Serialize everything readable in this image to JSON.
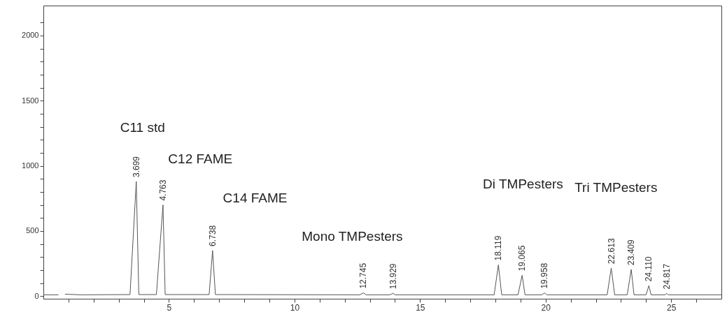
{
  "chart_data": {
    "type": "line",
    "x": [
      0,
      0.6,
      0.66,
      0.8,
      0.86,
      1.5,
      3.45,
      3.699,
      3.8,
      4.5,
      4.763,
      4.85,
      6.6,
      6.738,
      6.85,
      12.6,
      12.745,
      12.85,
      13.8,
      13.929,
      14.0,
      17.95,
      18.119,
      18.25,
      18.9,
      19.065,
      19.18,
      19.85,
      19.958,
      20.05,
      22.45,
      22.613,
      22.75,
      23.25,
      23.409,
      23.52,
      24.0,
      24.11,
      24.2,
      24.75,
      24.817,
      24.9,
      27
    ],
    "series": [
      {
        "color": "#555555",
        "values": [
          10,
          10,
          null,
          null,
          15,
          10,
          12,
          880,
          12,
          12,
          700,
          12,
          12,
          350,
          12,
          10,
          25,
          10,
          10,
          22,
          10,
          10,
          240,
          10,
          10,
          160,
          10,
          10,
          25,
          10,
          10,
          215,
          10,
          10,
          205,
          10,
          10,
          80,
          10,
          10,
          20,
          10,
          10
        ]
      }
    ],
    "xlim": [
      0,
      27
    ],
    "xticks": [
      {
        "value": 1,
        "label": null
      },
      {
        "value": 2,
        "label": null
      },
      {
        "value": 3,
        "label": null
      },
      {
        "value": 4,
        "label": null
      },
      5,
      {
        "value": 6,
        "label": null
      },
      {
        "value": 7,
        "label": null
      },
      {
        "value": 8,
        "label": null
      },
      {
        "value": 9,
        "label": null
      },
      10,
      {
        "value": 11,
        "label": null
      },
      {
        "value": 12,
        "label": null
      },
      {
        "value": 13,
        "label": null
      },
      {
        "value": 14,
        "label": null
      },
      15,
      {
        "value": 16,
        "label": null
      },
      {
        "value": 17,
        "label": null
      },
      {
        "value": 18,
        "label": null
      },
      {
        "value": 19,
        "label": null
      },
      20,
      {
        "value": 21,
        "label": null
      },
      {
        "value": 22,
        "label": null
      },
      {
        "value": 23,
        "label": null
      },
      {
        "value": 24,
        "label": null
      },
      25,
      {
        "value": 26,
        "label": null
      }
    ],
    "ylim": [
      -20,
      2230
    ],
    "yticks": [
      0,
      {
        "value": 100,
        "label": null
      },
      {
        "value": 200,
        "label": null
      },
      {
        "value": 300,
        "label": null
      },
      {
        "value": 400,
        "label": null
      },
      500,
      {
        "value": 600,
        "label": null
      },
      {
        "value": 700,
        "label": null
      },
      {
        "value": 800,
        "label": null
      },
      {
        "value": 900,
        "label": null
      },
      1000,
      {
        "value": 1100,
        "label": null
      },
      {
        "value": 1200,
        "label": null
      },
      {
        "value": 1300,
        "label": null
      },
      {
        "value": 1400,
        "label": null
      },
      1500,
      {
        "value": 1600,
        "label": null
      },
      {
        "value": 1700,
        "label": null
      },
      {
        "value": 1800,
        "label": null
      },
      {
        "value": 1900,
        "label": null
      },
      2000,
      {
        "value": 2100,
        "label": null
      }
    ],
    "grid": false,
    "marker": "none",
    "line_style": "solid",
    "annotations": [
      {
        "text": "3.699",
        "x": 3.699,
        "y": 880
      },
      {
        "text": "4.763",
        "x": 4.763,
        "y": 700
      },
      {
        "text": "6.738",
        "x": 6.738,
        "y": 350
      },
      {
        "text": "12.745",
        "x": 12.745,
        "y": 25
      },
      {
        "text": "13.929",
        "x": 13.929,
        "y": 22
      },
      {
        "text": "18.119",
        "x": 18.119,
        "y": 240
      },
      {
        "text": "19.065",
        "x": 19.065,
        "y": 160
      },
      {
        "text": "19.958",
        "x": 19.958,
        "y": 25
      },
      {
        "text": "22.613",
        "x": 22.613,
        "y": 215
      },
      {
        "text": "23.409",
        "x": 23.409,
        "y": 205
      },
      {
        "text": "24.110",
        "x": 24.11,
        "y": 80
      },
      {
        "text": "24.817",
        "x": 24.817,
        "y": 20
      },
      "C11 std",
      "C12 FAME",
      "C14 FAME",
      "Mono TMPesters",
      "Di TMPesters",
      "Tri TMPesters"
    ]
  }
}
